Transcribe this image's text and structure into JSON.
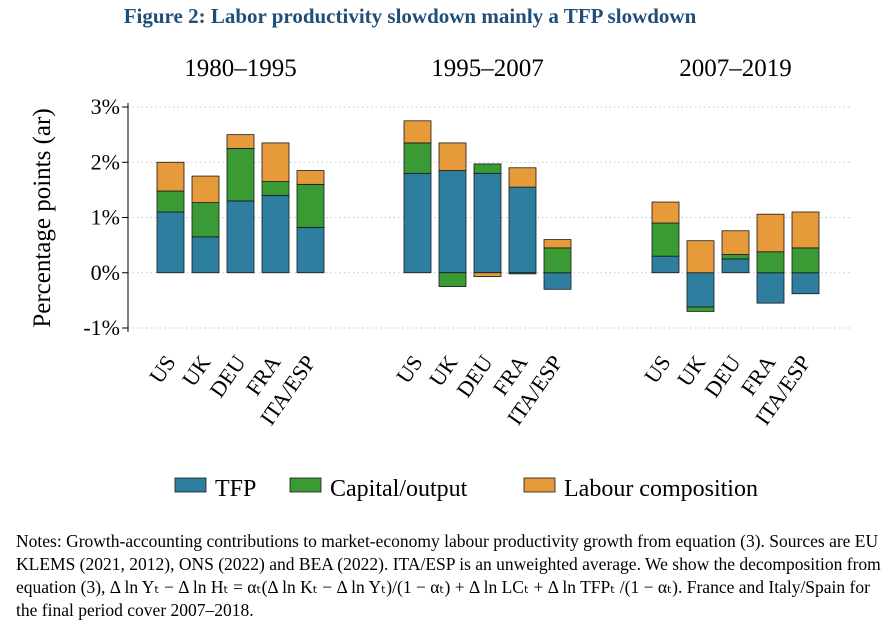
{
  "figure_title": "Figure 2: Labor productivity slowdown mainly a TFP slowdown",
  "notes": "Notes: Growth-accounting contributions to market-economy labour productivity growth from equation (3). Sources are EU KLEMS (2021, 2012), ONS (2022) and BEA (2022). ITA/ESP is an unweighted average. We show the decomposition from equation (3), Δ ln Yₜ − Δ ln Hₜ = αₜ(Δ ln Kₜ − Δ ln Yₜ)/(1 − αₜ) + Δ ln LCₜ + Δ ln TFPₜ /(1 − αₜ). France and Italy/Spain for the final period cover 2007–2018.",
  "colors": {
    "TFP": "#2e7ea0",
    "Capital/output": "#3a9a33",
    "Labour composition": "#e69a3a",
    "grid": "#c8c8c8"
  },
  "chart_data": {
    "type": "bar",
    "stacked": true,
    "ylabel": "Percentage points (ar)",
    "ylim": [
      -1,
      3
    ],
    "yticks": [
      -1,
      0,
      1,
      2,
      3
    ],
    "ytick_labels": [
      "-1%",
      "0%",
      "1%",
      "2%",
      "3%"
    ],
    "grid": "horizontal dotted",
    "legend_position": "bottom",
    "series_names": [
      "TFP",
      "Capital/output",
      "Labour composition"
    ],
    "panels": [
      {
        "title": "1980–1995",
        "categories": [
          "US",
          "UK",
          "DEU",
          "FRA",
          "ITA/ESP"
        ],
        "series": [
          {
            "name": "TFP",
            "values": [
              1.1,
              0.65,
              1.3,
              1.4,
              0.82
            ]
          },
          {
            "name": "Capital/output",
            "values": [
              0.38,
              0.62,
              0.95,
              0.25,
              0.78
            ]
          },
          {
            "name": "Labour composition",
            "values": [
              0.52,
              0.48,
              0.25,
              0.7,
              0.25
            ]
          }
        ]
      },
      {
        "title": "1995–2007",
        "categories": [
          "US",
          "UK",
          "DEU",
          "FRA",
          "ITA/ESP"
        ],
        "series": [
          {
            "name": "TFP",
            "values": [
              1.8,
              1.85,
              1.8,
              1.55,
              -0.3
            ]
          },
          {
            "name": "Capital/output",
            "values": [
              0.55,
              -0.25,
              0.17,
              -0.02,
              0.45
            ]
          },
          {
            "name": "Labour composition",
            "values": [
              0.4,
              0.5,
              -0.07,
              0.35,
              0.15
            ]
          }
        ]
      },
      {
        "title": "2007–2019",
        "categories": [
          "US",
          "UK",
          "DEU",
          "FRA",
          "ITA/ESP"
        ],
        "series": [
          {
            "name": "TFP",
            "values": [
              0.3,
              -0.62,
              0.25,
              -0.55,
              -0.38
            ]
          },
          {
            "name": "Capital/output",
            "values": [
              0.6,
              -0.08,
              0.08,
              0.38,
              0.45
            ]
          },
          {
            "name": "Labour composition",
            "values": [
              0.38,
              0.58,
              0.43,
              0.68,
              0.65
            ]
          }
        ]
      }
    ]
  }
}
